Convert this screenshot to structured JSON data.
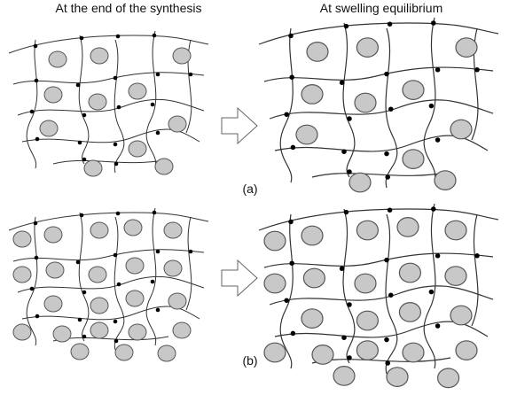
{
  "header": {
    "left_title": "At the end of the synthesis",
    "right_title": "At swelling equilibrium"
  },
  "panels": [
    {
      "label": "(a)"
    },
    {
      "label": "(b)"
    }
  ]
}
